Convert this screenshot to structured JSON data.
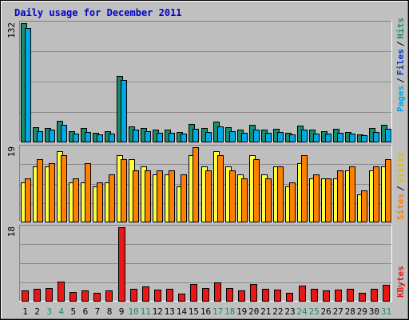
{
  "title": "Daily usage for December 2011",
  "colors": {
    "frame_bg": "#c0c0c0",
    "plot_bg": "#bebebe",
    "grid": "#8a8a8a",
    "pages": "#198c6e",
    "files": "#00a8e6",
    "hits": "#198c6e",
    "sites": "#ff8000",
    "visits": "#ffff40",
    "kbytes": "#e81818",
    "weekday_label": "#000000",
    "weekend_label": "#198c6e",
    "title": "#0000cc"
  },
  "legend": {
    "pages": "Pages",
    "files": "Files",
    "hits": "Hits",
    "sites": "Sites",
    "visits": "Visits",
    "kbytes": "KBytes",
    "separator": "/"
  },
  "chart_data": [
    {
      "type": "bar",
      "name": "hits-files-pages",
      "y_max_label": "132",
      "ylim": [
        0,
        132
      ],
      "grid": true,
      "series": [
        {
          "name": "Hits",
          "values": [
            132,
            16,
            15,
            23,
            12,
            15,
            10,
            12,
            73,
            17,
            15,
            13,
            13,
            11,
            20,
            15,
            22,
            16,
            13,
            19,
            13,
            14,
            10,
            18,
            13,
            12,
            14,
            11,
            8,
            15,
            19
          ]
        },
        {
          "name": "Files",
          "values": [
            127,
            12,
            13,
            19,
            9,
            11,
            8,
            9,
            69,
            13,
            12,
            10,
            10,
            9,
            14,
            11,
            17,
            12,
            10,
            13,
            10,
            11,
            8,
            13,
            9,
            9,
            10,
            9,
            7,
            11,
            14
          ]
        },
        {
          "name": "Pages",
          "values": [
            0,
            0,
            0,
            0,
            0,
            0,
            0,
            0,
            0,
            0,
            0,
            0,
            0,
            0,
            0,
            0,
            0,
            0,
            0,
            0,
            0,
            0,
            0,
            0,
            0,
            0,
            0,
            0,
            0,
            0,
            0
          ]
        }
      ]
    },
    {
      "type": "bar",
      "name": "visits-sites",
      "y_max_label": "19",
      "ylim": [
        0,
        19
      ],
      "grid": true,
      "series": [
        {
          "name": "Visits",
          "values": [
            10,
            14,
            14,
            18,
            10,
            10,
            9,
            10,
            17,
            16,
            14,
            12,
            12,
            9,
            17,
            14,
            18,
            14,
            12,
            17,
            12,
            14,
            9,
            15,
            11,
            11,
            11,
            13,
            7,
            13,
            14
          ]
        },
        {
          "name": "Sites",
          "values": [
            11,
            16,
            15,
            17,
            11,
            15,
            10,
            12,
            16,
            13,
            13,
            13,
            13,
            12,
            19,
            13,
            17,
            13,
            11,
            16,
            11,
            14,
            10,
            17,
            12,
            11,
            13,
            14,
            8,
            14,
            16
          ]
        }
      ]
    },
    {
      "type": "bar",
      "name": "kbytes",
      "y_max_label": "18",
      "ylim": [
        0,
        18
      ],
      "grid": true,
      "series": [
        {
          "name": "KBytes",
          "values": [
            2.6,
            3.0,
            3.1,
            4.7,
            2.1,
            2.6,
            2.0,
            2.6,
            18.0,
            3.0,
            3.6,
            2.8,
            2.9,
            1.8,
            4.1,
            3.2,
            4.5,
            3.2,
            2.6,
            4.2,
            2.9,
            2.8,
            1.9,
            3.8,
            2.9,
            2.6,
            2.8,
            3.0,
            2.0,
            3.0,
            3.9
          ]
        }
      ]
    }
  ],
  "days": [
    "1",
    "2",
    "3",
    "4",
    "5",
    "6",
    "7",
    "8",
    "9",
    "10",
    "11",
    "12",
    "13",
    "14",
    "15",
    "16",
    "17",
    "18",
    "19",
    "20",
    "21",
    "22",
    "23",
    "24",
    "25",
    "26",
    "27",
    "28",
    "29",
    "30",
    "31"
  ],
  "weekend_days": [
    3,
    4,
    10,
    11,
    17,
    18,
    24,
    25,
    31
  ]
}
